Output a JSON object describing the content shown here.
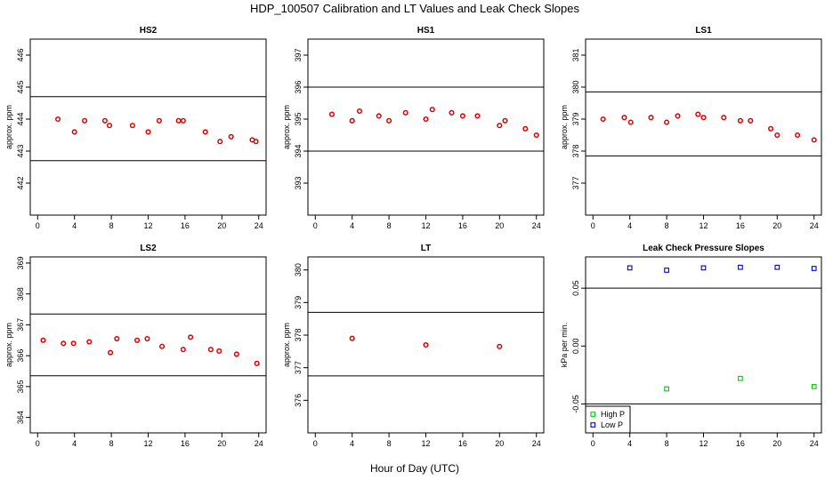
{
  "figure": {
    "title": "HDP_100507  Calibration and LT Values and Leak Check Slopes",
    "xlabel": "Hour of Day (UTC)"
  },
  "chart_data": [
    {
      "type": "scatter",
      "title": "HS2",
      "ylabel": "approx. ppm",
      "xlim": [
        -0.8,
        24.8
      ],
      "ylim": [
        441,
        446.5
      ],
      "xticks": [
        0,
        4,
        8,
        12,
        16,
        20,
        24
      ],
      "yticks": [
        442,
        443,
        444,
        445,
        446
      ],
      "hlines": [
        444.7,
        442.7
      ],
      "series": [
        {
          "color": "#dd0000",
          "marker": "circle",
          "x": [
            2.2,
            4.0,
            5.1,
            7.3,
            7.8,
            10.3,
            12.0,
            13.2,
            15.3,
            15.8,
            18.2,
            19.8,
            21.0,
            23.3,
            23.7
          ],
          "y": [
            444.0,
            443.6,
            443.95,
            443.95,
            443.8,
            443.8,
            443.6,
            443.95,
            443.95,
            443.95,
            443.6,
            443.3,
            443.45,
            443.35,
            443.3
          ]
        }
      ]
    },
    {
      "type": "scatter",
      "title": "HS1",
      "ylabel": "approx. ppm",
      "xlim": [
        -0.8,
        24.8
      ],
      "ylim": [
        392,
        397.5
      ],
      "xticks": [
        0,
        4,
        8,
        12,
        16,
        20,
        24
      ],
      "yticks": [
        393,
        394,
        395,
        396,
        397
      ],
      "hlines": [
        396.0,
        394.0
      ],
      "series": [
        {
          "color": "#dd0000",
          "marker": "circle",
          "x": [
            1.8,
            4.0,
            4.8,
            6.9,
            8.0,
            9.8,
            12.0,
            12.7,
            14.8,
            16.0,
            17.6,
            20.0,
            20.6,
            22.8,
            24.0
          ],
          "y": [
            395.15,
            394.95,
            395.25,
            395.1,
            394.95,
            395.2,
            395.0,
            395.3,
            395.2,
            395.1,
            395.1,
            394.8,
            394.95,
            394.7,
            394.5
          ]
        }
      ]
    },
    {
      "type": "scatter",
      "title": "LS1",
      "ylabel": "approx. ppm",
      "xlim": [
        -0.8,
        24.8
      ],
      "ylim": [
        376,
        381.5
      ],
      "xticks": [
        0,
        4,
        8,
        12,
        16,
        20,
        24
      ],
      "yticks": [
        377,
        378,
        379,
        380,
        381
      ],
      "hlines": [
        379.85,
        377.85
      ],
      "series": [
        {
          "color": "#dd0000",
          "marker": "circle",
          "x": [
            1.1,
            3.4,
            4.1,
            6.3,
            8.0,
            9.2,
            11.4,
            12.0,
            14.2,
            16.0,
            17.1,
            19.3,
            20.0,
            22.2,
            24.0
          ],
          "y": [
            379.0,
            379.05,
            378.9,
            379.05,
            378.9,
            379.1,
            379.15,
            379.05,
            379.05,
            378.95,
            378.95,
            378.7,
            378.5,
            378.5,
            378.35
          ]
        }
      ]
    },
    {
      "type": "scatter",
      "title": "LS2",
      "ylabel": "approx. ppm",
      "xlim": [
        -0.8,
        24.8
      ],
      "ylim": [
        363.5,
        369.2
      ],
      "xticks": [
        0,
        4,
        8,
        12,
        16,
        20,
        24
      ],
      "yticks": [
        364,
        365,
        366,
        367,
        368,
        369
      ],
      "hlines": [
        367.35,
        365.35
      ],
      "series": [
        {
          "color": "#dd0000",
          "marker": "circle",
          "x": [
            0.6,
            2.8,
            3.9,
            5.6,
            7.9,
            8.6,
            10.8,
            11.9,
            13.5,
            15.8,
            16.6,
            18.8,
            19.7,
            21.6,
            23.8
          ],
          "y": [
            366.5,
            366.4,
            366.4,
            366.45,
            366.1,
            366.55,
            366.5,
            366.55,
            366.3,
            366.2,
            366.6,
            366.2,
            366.15,
            366.05,
            365.75
          ]
        }
      ]
    },
    {
      "type": "scatter",
      "title": "LT",
      "ylabel": "approx. ppm",
      "xlim": [
        -0.8,
        24.8
      ],
      "ylim": [
        375,
        380.4
      ],
      "xticks": [
        0,
        4,
        8,
        12,
        16,
        20,
        24
      ],
      "yticks": [
        376,
        377,
        378,
        379,
        380
      ],
      "hlines": [
        378.7,
        376.75
      ],
      "series": [
        {
          "color": "#dd0000",
          "marker": "circle",
          "x": [
            4.0,
            12.0,
            20.0
          ],
          "y": [
            377.9,
            377.7,
            377.65
          ]
        }
      ]
    },
    {
      "type": "scatter",
      "title": "Leak Check Pressure Slopes",
      "ylabel": "kPa per min.",
      "xlim": [
        -0.8,
        24.8
      ],
      "ylim": [
        -0.075,
        0.077
      ],
      "xticks": [
        0,
        4,
        8,
        12,
        16,
        20,
        24
      ],
      "yticks": [
        -0.05,
        0.0,
        0.05
      ],
      "yticklabels": [
        "-0.05",
        "0.00",
        "0.05"
      ],
      "hlines": [
        0.05,
        -0.05
      ],
      "legend": {
        "position": "bottom-left"
      },
      "series": [
        {
          "name": "High P",
          "color": "#00cc00",
          "marker": "square",
          "x": [
            8.0,
            16.0,
            24.0
          ],
          "y": [
            -0.037,
            -0.028,
            -0.035
          ]
        },
        {
          "name": "Low P",
          "color": "#0000cc",
          "marker": "square",
          "x": [
            4.0,
            8.0,
            12.0,
            16.0,
            20.0,
            24.0
          ],
          "y": [
            0.0675,
            0.0655,
            0.0675,
            0.068,
            0.068,
            0.067
          ]
        }
      ]
    }
  ]
}
